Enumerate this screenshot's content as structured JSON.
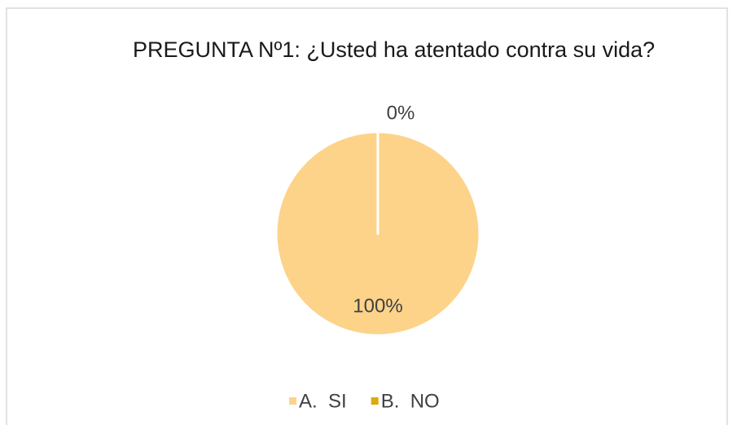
{
  "chart_data": {
    "type": "pie",
    "title": "PREGUNTA Nº1: ¿Usted ha atentado contra su vida?",
    "categories": [
      "A.  SI",
      "B.  NO"
    ],
    "values": [
      100,
      0
    ],
    "value_labels": [
      "100%",
      "0%"
    ],
    "colors": [
      "#fdd38a",
      "#dbaa0b"
    ],
    "legend": "bottom"
  }
}
